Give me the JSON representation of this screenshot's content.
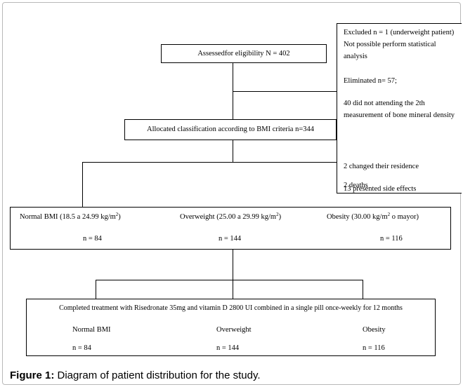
{
  "assessed": "Assessedfor eligibility N = 402",
  "excluded": {
    "line1": "Excluded n = 1 (underweight patient) Not possible perform statistical analysis",
    "line2": "Eliminated n= 57;",
    "line3": "40 did not attending the 2th measurement of bone mineral density",
    "line4": "2 changed their residence",
    "line5": "13 presented side effects",
    "line6": "2 deaths"
  },
  "allocated": "Allocated classification according to BMI criteria n=344",
  "groups": {
    "normal_label": "Normal BMI (18.5 a 24.99 kg/m",
    "normal_sup": "2",
    "normal_close": ")",
    "normal_n": "n = 84",
    "over_label": "Overweight (25.00 a 29.99 kg/m",
    "over_sup": "2",
    "over_close": ")",
    "over_n": "n = 144",
    "obese_label": "Obesity (30.00 kg/m",
    "obese_sup": "2",
    "obese_close": " o mayor)",
    "obese_n": "n = 116"
  },
  "completed": {
    "title": "Completed treatment with Risedronate 35mg and vitamin D 2800 UI combined in a single pill once-weekly for 12 months",
    "normal": "Normal  BMI",
    "over": "Overweight",
    "obese": "Obesity",
    "normal_n": "n = 84",
    "over_n": "n = 144",
    "obese_n": "n = 116"
  },
  "caption": {
    "label": "Figure 1:",
    "text": " Diagram of patient distribution for the study."
  }
}
